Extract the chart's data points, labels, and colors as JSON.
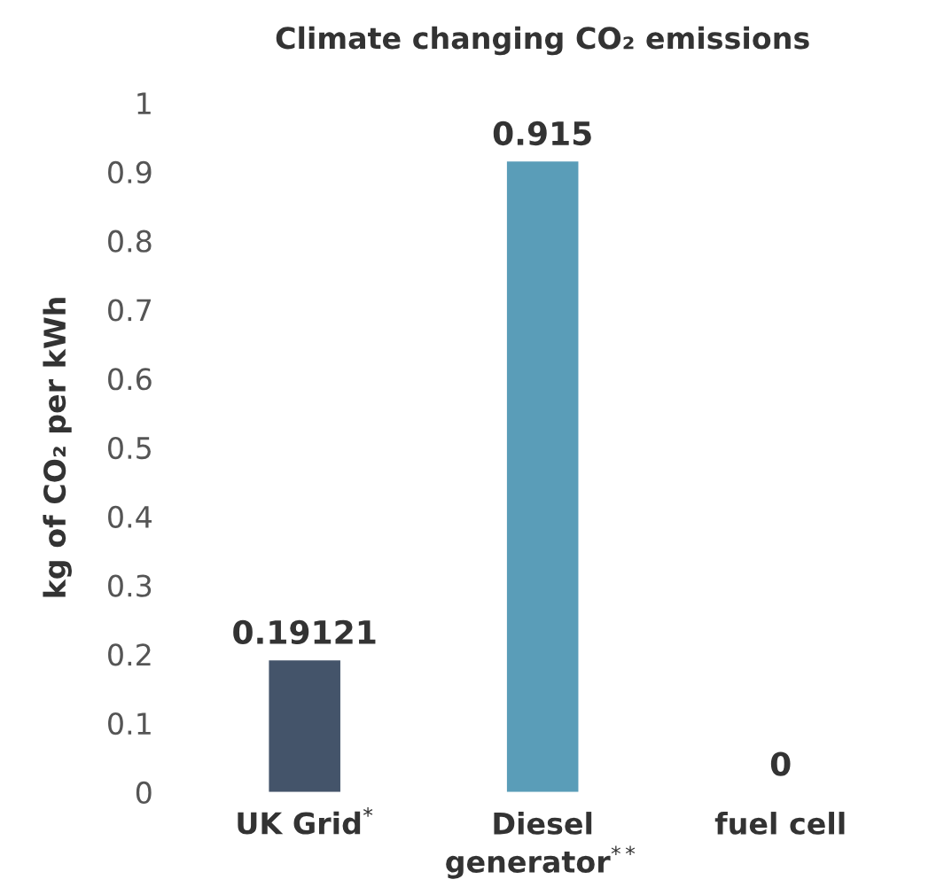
{
  "chart_data": {
    "type": "bar",
    "title": "Climate changing CO₂ emissions",
    "ylabel": "kg of CO₂ per kWh",
    "categories": [
      "UK Grid$^{*}$",
      "Diesel\ngenerator$^{**}$",
      "fuel cell"
    ],
    "values": [
      0.19121,
      0.915,
      0
    ],
    "colors": [
      "#44546a",
      "#5a9db8",
      "#7fb069"
    ],
    "ylim": [
      0,
      1
    ],
    "yticks": [
      0,
      0.1,
      0.2,
      0.3,
      0.4,
      0.5,
      0.6,
      0.7,
      0.8,
      0.9,
      1
    ],
    "data_labels": true,
    "grid": false,
    "legend": false
  }
}
